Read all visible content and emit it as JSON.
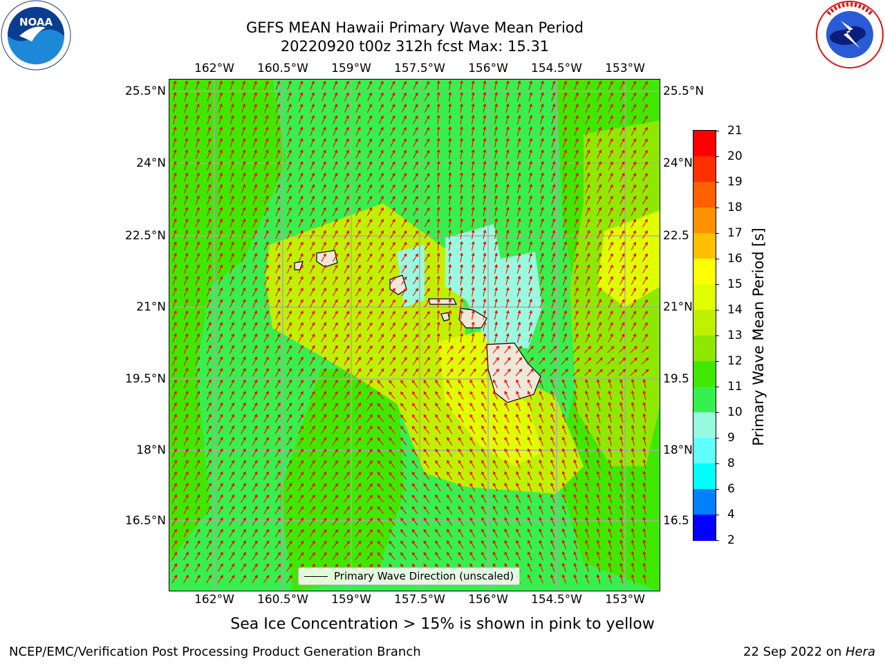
{
  "header": {
    "title_line1": "GEFS MEAN Hawaii Primary Wave Mean Period",
    "title_line2": "20220920 t00z 312h fcst   Max: 15.31"
  },
  "logos": {
    "left": {
      "text": "NOAA",
      "icon": "noaa-logo-icon",
      "ring_text": "NATIONAL OCEANIC AND ATMOSPHERIC ADMINISTRATION · U.S. DEPARTMENT OF COMMERCE"
    },
    "right": {
      "icon": "nws-logo-icon",
      "ring_text": "NATIONAL WEATHER SERVICE"
    }
  },
  "map": {
    "lon_labels": [
      "162°W",
      "160.5°W",
      "159°W",
      "157.5°W",
      "156°W",
      "154.5°W",
      "153°W"
    ],
    "lat_labels_left": [
      "25.5°N",
      "24°N",
      "22.5°N",
      "21°N",
      "19.5°N",
      "18°N",
      "16.5°N"
    ],
    "lat_labels_right": [
      "25.5°N",
      "24°N",
      "22.5",
      "21°N",
      "19.5",
      "18°N",
      "16.5"
    ],
    "legend_label": "Primary Wave Direction (unscaled)",
    "arrow_color": "#ff0000",
    "land_color": "#ede8d8",
    "grid_color": "#aaaaaa"
  },
  "colorbar": {
    "title": "Primary Wave Mean Period [s]",
    "ticks": [
      "21",
      "20",
      "19",
      "18",
      "17",
      "16",
      "15",
      "14",
      "13",
      "12",
      "11",
      "10",
      "9",
      "8",
      "6",
      "4",
      "2"
    ],
    "colors": [
      "#ff0000",
      "#ff3000",
      "#ff6000",
      "#ff9000",
      "#ffc000",
      "#ffff00",
      "#e0ff00",
      "#bff000",
      "#8fe800",
      "#40e800",
      "#00ff00",
      "#38f070",
      "#98fbe0",
      "#60ffff",
      "#00ffff",
      "#0080ff",
      "#0000ff"
    ],
    "segment_colors": [
      "#ff0000",
      "#ff3000",
      "#ff6000",
      "#ff9000",
      "#ffc000",
      "#ffff00",
      "#e0ff00",
      "#bff000",
      "#8fe800",
      "#40e800",
      "#37ef4e",
      "#98fbe0",
      "#60ffff",
      "#00ffff",
      "#0080ff",
      "#0000ff"
    ]
  },
  "note": "Sea Ice Concentration > 15% is shown in pink to yellow",
  "footer": {
    "left": "NCEP/EMC/Verification Post Processing Product Generation Branch",
    "right_date": "22 Sep 2022 on ",
    "right_host": "Hera"
  }
}
